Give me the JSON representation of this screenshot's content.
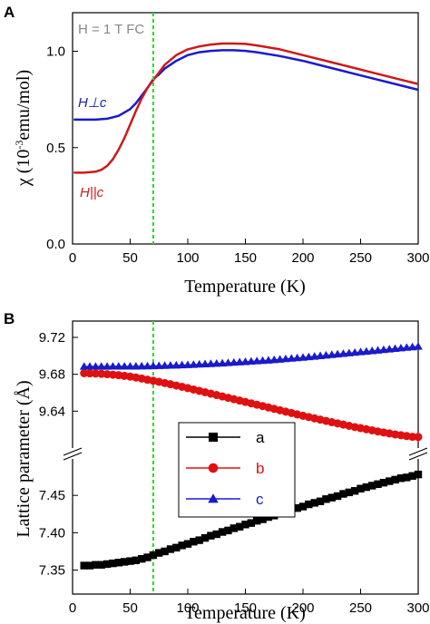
{
  "chart_data": [
    {
      "type": "line",
      "panel_label": "A",
      "xlabel": "Temperature (K)",
      "ylabel": "χ (10-3emu/mol)",
      "xlim": [
        0,
        300
      ],
      "ylim": [
        0.0,
        1.2
      ],
      "xticks": [
        "0",
        "50",
        "100",
        "150",
        "200",
        "250",
        "300"
      ],
      "yticks": [
        "0.0",
        "0.5",
        "1.0"
      ],
      "annotation": "H = 1 T FC",
      "marker_line_x": 70,
      "series": [
        {
          "name": "H⊥c",
          "color": "#1a1acc",
          "x": [
            1,
            10,
            20,
            30,
            40,
            50,
            55,
            60,
            65,
            70,
            75,
            80,
            90,
            100,
            110,
            120,
            130,
            140,
            150,
            160,
            180,
            200,
            220,
            240,
            260,
            280,
            300
          ],
          "y": [
            0.645,
            0.645,
            0.645,
            0.65,
            0.665,
            0.7,
            0.73,
            0.77,
            0.81,
            0.855,
            0.88,
            0.91,
            0.95,
            0.98,
            0.995,
            1.002,
            1.005,
            1.005,
            1.002,
            0.995,
            0.975,
            0.95,
            0.92,
            0.89,
            0.86,
            0.83,
            0.8
          ]
        },
        {
          "name": "H||c",
          "color": "#cc1a1a",
          "x": [
            1,
            10,
            20,
            25,
            30,
            35,
            40,
            45,
            50,
            55,
            60,
            65,
            70,
            75,
            80,
            90,
            100,
            110,
            120,
            130,
            140,
            150,
            160,
            180,
            200,
            220,
            240,
            260,
            280,
            300
          ],
          "y": [
            0.37,
            0.37,
            0.375,
            0.385,
            0.405,
            0.44,
            0.49,
            0.55,
            0.62,
            0.69,
            0.755,
            0.81,
            0.85,
            0.89,
            0.93,
            0.98,
            1.01,
            1.025,
            1.035,
            1.04,
            1.04,
            1.038,
            1.03,
            1.01,
            0.98,
            0.95,
            0.92,
            0.89,
            0.86,
            0.83
          ]
        }
      ]
    },
    {
      "type": "scatter",
      "panel_label": "B",
      "xlabel": "Temperature (K)",
      "ylabel": "Lattice parameter (Å)",
      "xlim": [
        0,
        300
      ],
      "axis_break": true,
      "xticks": [
        "0",
        "50",
        "100",
        "150",
        "200",
        "250",
        "300"
      ],
      "yticks_upper": [
        "9.64",
        "9.68",
        "9.72"
      ],
      "yticks_lower": [
        "7.35",
        "7.40",
        "7.45"
      ],
      "upper_ylim": [
        9.6,
        9.72
      ],
      "lower_ylim": [
        7.33,
        7.5
      ],
      "marker_line_x": 70,
      "legend": [
        "a",
        "b",
        "c"
      ],
      "legend_position": "center",
      "x": [
        10,
        15,
        20,
        25,
        30,
        35,
        40,
        45,
        50,
        55,
        60,
        65,
        70,
        75,
        80,
        85,
        90,
        95,
        100,
        105,
        110,
        115,
        120,
        125,
        130,
        135,
        140,
        145,
        150,
        155,
        160,
        165,
        170,
        175,
        180,
        185,
        190,
        195,
        200,
        205,
        210,
        215,
        220,
        225,
        230,
        235,
        240,
        245,
        250,
        255,
        260,
        265,
        270,
        275,
        280,
        285,
        290,
        295,
        300
      ],
      "series": [
        {
          "name": "a",
          "color": "#000000",
          "marker": "square",
          "y": [
            7.356,
            7.356,
            7.357,
            7.357,
            7.358,
            7.359,
            7.36,
            7.361,
            7.362,
            7.363,
            7.365,
            7.367,
            7.37,
            7.373,
            7.375,
            7.378,
            7.38,
            7.383,
            7.385,
            7.388,
            7.39,
            7.393,
            7.396,
            7.398,
            7.401,
            7.403,
            7.406,
            7.408,
            7.411,
            7.413,
            7.416,
            7.418,
            7.421,
            7.423,
            7.426,
            7.428,
            7.43,
            7.433,
            7.435,
            7.438,
            7.44,
            7.442,
            7.445,
            7.447,
            7.449,
            7.452,
            7.454,
            7.456,
            7.459,
            7.461,
            7.463,
            7.465,
            7.467,
            7.469,
            7.471,
            7.473,
            7.474,
            7.476,
            7.478
          ]
        },
        {
          "name": "b",
          "color": "#e01010",
          "marker": "circle",
          "y": [
            9.6812,
            9.681,
            9.6808,
            9.6805,
            9.6801,
            9.6796,
            9.679,
            9.6783,
            9.6775,
            9.6765,
            9.6754,
            9.6741,
            9.673,
            9.6718,
            9.6705,
            9.6692,
            9.6678,
            9.6664,
            9.665,
            9.6635,
            9.662,
            9.6605,
            9.659,
            9.6575,
            9.656,
            9.6545,
            9.653,
            9.6515,
            9.65,
            9.6485,
            9.647,
            9.6455,
            9.644,
            9.6425,
            9.641,
            9.6395,
            9.638,
            9.6365,
            9.635,
            9.6336,
            9.6322,
            9.6308,
            9.6294,
            9.628,
            9.6267,
            9.6254,
            9.6241,
            9.6228,
            9.6216,
            9.6204,
            9.6192,
            9.618,
            9.6169,
            9.6158,
            9.6148,
            9.6139,
            9.613,
            9.6122,
            9.612
          ]
        },
        {
          "name": "c",
          "color": "#1a1acc",
          "marker": "triangle",
          "y": [
            9.6885,
            9.6885,
            9.6885,
            9.6885,
            9.6885,
            9.6886,
            9.6886,
            9.6886,
            9.6887,
            9.6887,
            9.6888,
            9.6889,
            9.689,
            9.6892,
            9.6894,
            9.6896,
            9.6898,
            9.69,
            9.6902,
            9.6905,
            9.6908,
            9.6911,
            9.6914,
            9.6917,
            9.692,
            9.6924,
            9.6928,
            9.6932,
            9.6936,
            9.694,
            9.6944,
            9.6948,
            9.6952,
            9.6957,
            9.6962,
            9.6967,
            9.6972,
            9.6977,
            9.6982,
            9.6988,
            9.6994,
            9.7,
            9.7006,
            9.7012,
            9.7018,
            9.7024,
            9.703,
            9.7036,
            9.7042,
            9.7048,
            9.7054,
            9.706,
            9.7066,
            9.7072,
            9.7078,
            9.7084,
            9.709,
            9.7096,
            9.7102
          ]
        }
      ]
    }
  ]
}
